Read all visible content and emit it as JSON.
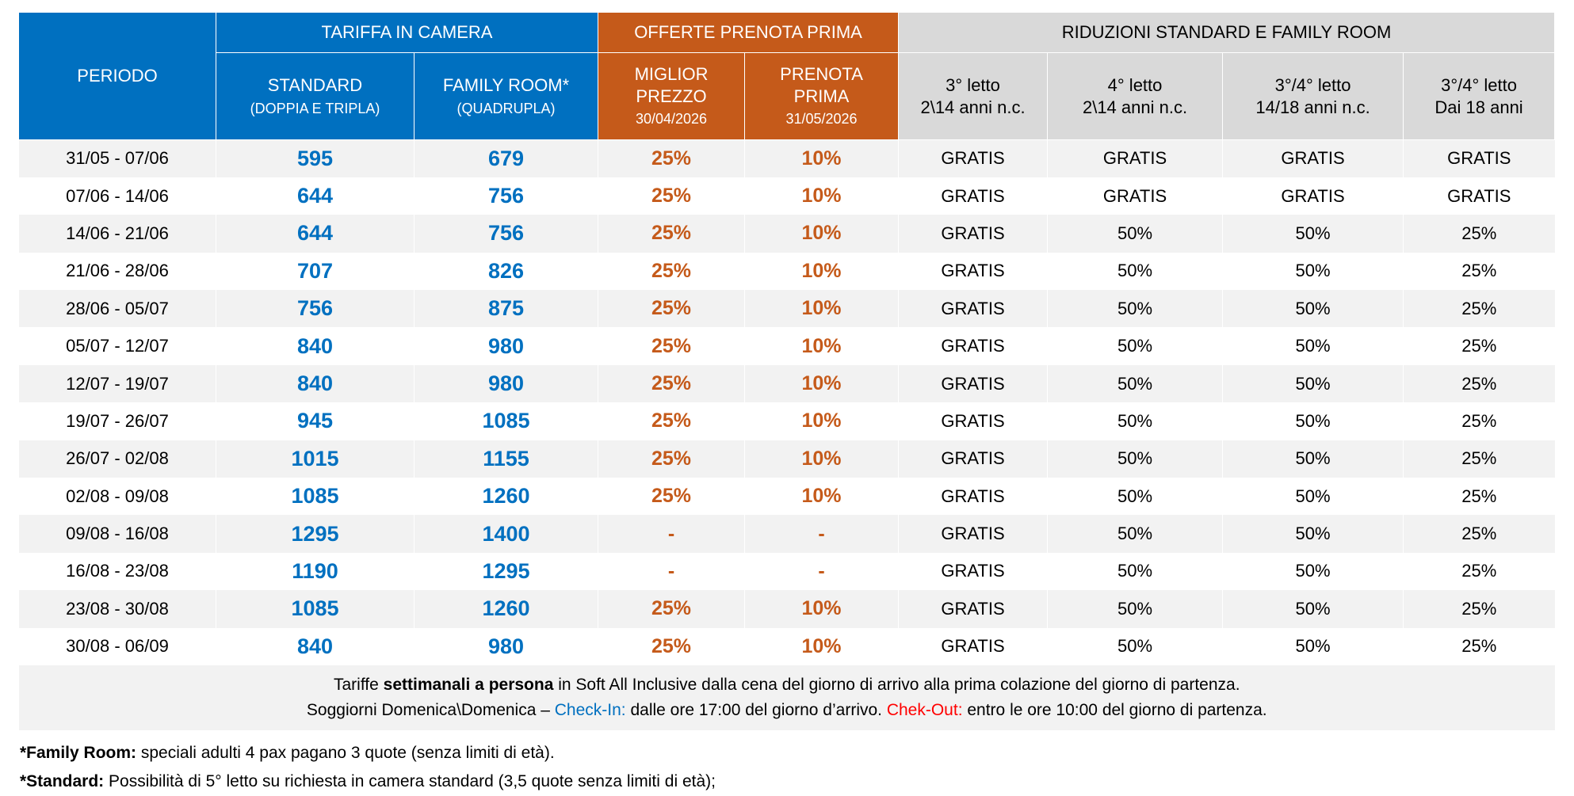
{
  "header": {
    "periodo": "PERIODO",
    "tariffa": "TARIFFA IN CAMERA",
    "offerte": "OFFERTE PRENOTA PRIMA",
    "riduzioni": "RIDUZIONI STANDARD E FAMILY ROOM",
    "standard": "STANDARD",
    "standard_sub": "(DOPPIA E TRIPLA)",
    "family": "FAMILY ROOM*",
    "family_sub": "(QUADRUPLA)",
    "miglior1": "MIGLIOR",
    "miglior2": "PREZZO",
    "miglior_date": "30/04/2026",
    "prenota1": "PRENOTA",
    "prenota2": "PRIMA",
    "prenota_date": "31/05/2026",
    "r3": "3° letto",
    "r3_sub": "2\\14 anni n.c.",
    "r4": "4° letto",
    "r4_sub": "2\\14 anni n.c.",
    "r34a": "3°/4° letto",
    "r34a_sub": "14/18 anni n.c.",
    "r34b": "3°/4° letto",
    "r34b_sub": "Dai 18 anni"
  },
  "rows": [
    [
      "31/05 - 07/06",
      "595",
      "679",
      "25%",
      "10%",
      "GRATIS",
      "GRATIS",
      "GRATIS",
      "GRATIS"
    ],
    [
      "07/06 - 14/06",
      "644",
      "756",
      "25%",
      "10%",
      "GRATIS",
      "GRATIS",
      "GRATIS",
      "GRATIS"
    ],
    [
      "14/06 - 21/06",
      "644",
      "756",
      "25%",
      "10%",
      "GRATIS",
      "50%",
      "50%",
      "25%"
    ],
    [
      "21/06 - 28/06",
      "707",
      "826",
      "25%",
      "10%",
      "GRATIS",
      "50%",
      "50%",
      "25%"
    ],
    [
      "28/06 - 05/07",
      "756",
      "875",
      "25%",
      "10%",
      "GRATIS",
      "50%",
      "50%",
      "25%"
    ],
    [
      "05/07 - 12/07",
      "840",
      "980",
      "25%",
      "10%",
      "GRATIS",
      "50%",
      "50%",
      "25%"
    ],
    [
      "12/07 - 19/07",
      "840",
      "980",
      "25%",
      "10%",
      "GRATIS",
      "50%",
      "50%",
      "25%"
    ],
    [
      "19/07 - 26/07",
      "945",
      "1085",
      "25%",
      "10%",
      "GRATIS",
      "50%",
      "50%",
      "25%"
    ],
    [
      "26/07 - 02/08",
      "1015",
      "1155",
      "25%",
      "10%",
      "GRATIS",
      "50%",
      "50%",
      "25%"
    ],
    [
      "02/08 - 09/08",
      "1085",
      "1260",
      "25%",
      "10%",
      "GRATIS",
      "50%",
      "50%",
      "25%"
    ],
    [
      "09/08 - 16/08",
      "1295",
      "1400",
      "-",
      "-",
      "GRATIS",
      "50%",
      "50%",
      "25%"
    ],
    [
      "16/08 - 23/08",
      "1190",
      "1295",
      "-",
      "-",
      "GRATIS",
      "50%",
      "50%",
      "25%"
    ],
    [
      "23/08 - 30/08",
      "1085",
      "1260",
      "25%",
      "10%",
      "GRATIS",
      "50%",
      "50%",
      "25%"
    ],
    [
      "30/08 - 06/09",
      "840",
      "980",
      "25%",
      "10%",
      "GRATIS",
      "50%",
      "50%",
      "25%"
    ]
  ],
  "footer": {
    "l1a": "Tariffe ",
    "l1b": "settimanali a persona",
    "l1c": " in Soft All Inclusive dalla cena del giorno di arrivo alla prima colazione del giorno di partenza.",
    "l2a": "Soggiorni Domenica\\Domenica – ",
    "l2b": "Check-In:",
    "l2c": " dalle ore 17:00 del giorno d’arrivo. ",
    "l2d": "Chek-Out:",
    "l2e": " entro le ore 10:00 del giorno di partenza."
  },
  "notes": {
    "n1a": "*Family Room:",
    "n1b": " speciali adulti 4 pax pagano 3 quote (senza limiti di età).",
    "n2a": "*Standard:",
    "n2b": " Possibilità di 5° letto su richiesta in camera standard (3,5 quote senza limiti di età);"
  }
}
